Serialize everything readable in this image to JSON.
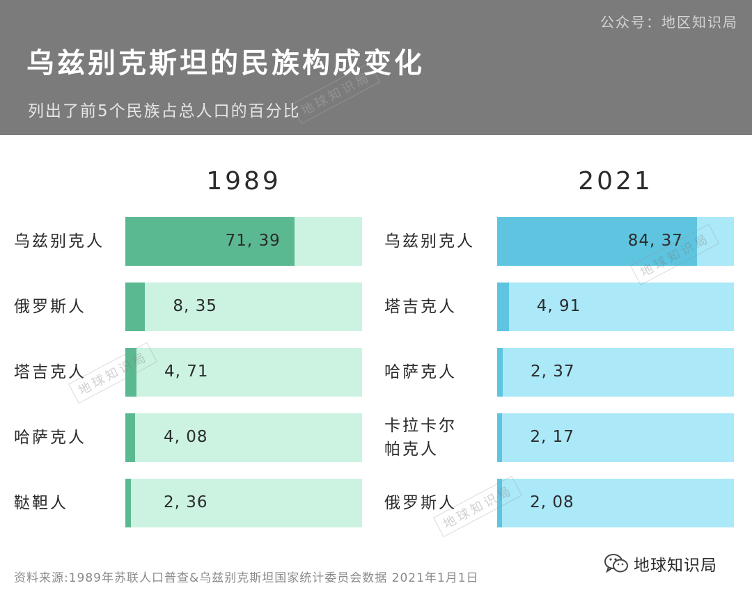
{
  "header": {
    "account": "公众号：地区知识局",
    "title": "乌兹别克斯坦的民族构成变化",
    "subtitle": "列出了前5个民族占总人口的百分比",
    "watermark": "地球知识局"
  },
  "chart_data": {
    "type": "bar",
    "title": "乌兹别克斯坦的民族构成变化",
    "subtitle": "列出了前5个民族占总人口的百分比",
    "unit": "%",
    "xlim": [
      0,
      100
    ],
    "panels": [
      {
        "year": "1989",
        "colors": {
          "fill": "#5bb991",
          "track": "#ccf3e2"
        },
        "categories": [
          "乌兹别克人",
          "俄罗斯人",
          "塔吉克人",
          "哈萨克人",
          "鞑靼人"
        ],
        "values": [
          71.39,
          8.35,
          4.71,
          4.08,
          2.36
        ],
        "value_labels": [
          "71, 39",
          "8, 35",
          "4, 71",
          "4, 08",
          "2, 36"
        ]
      },
      {
        "year": "2021",
        "colors": {
          "fill": "#5ec4df",
          "track": "#abe8f8"
        },
        "categories": [
          "乌兹别克人",
          "塔吉克人",
          "哈萨克人",
          "卡拉卡尔帕克人",
          "俄罗斯人"
        ],
        "display_categories": [
          "乌兹别克人",
          "塔吉克人",
          "哈萨克人",
          "卡拉卡尔\n帕克人",
          "俄罗斯人"
        ],
        "values": [
          84.37,
          4.91,
          2.37,
          2.17,
          2.08
        ],
        "value_labels": [
          "84, 37",
          "4, 91",
          "2, 37",
          "2, 17",
          "2, 08"
        ]
      }
    ]
  },
  "footer": {
    "source": "资料来源:1989年苏联人口普查&乌兹别克斯坦国家统计委员会数据 2021年1月1日",
    "brand": "地球知识局",
    "brand_icon": "wechat-icon"
  }
}
